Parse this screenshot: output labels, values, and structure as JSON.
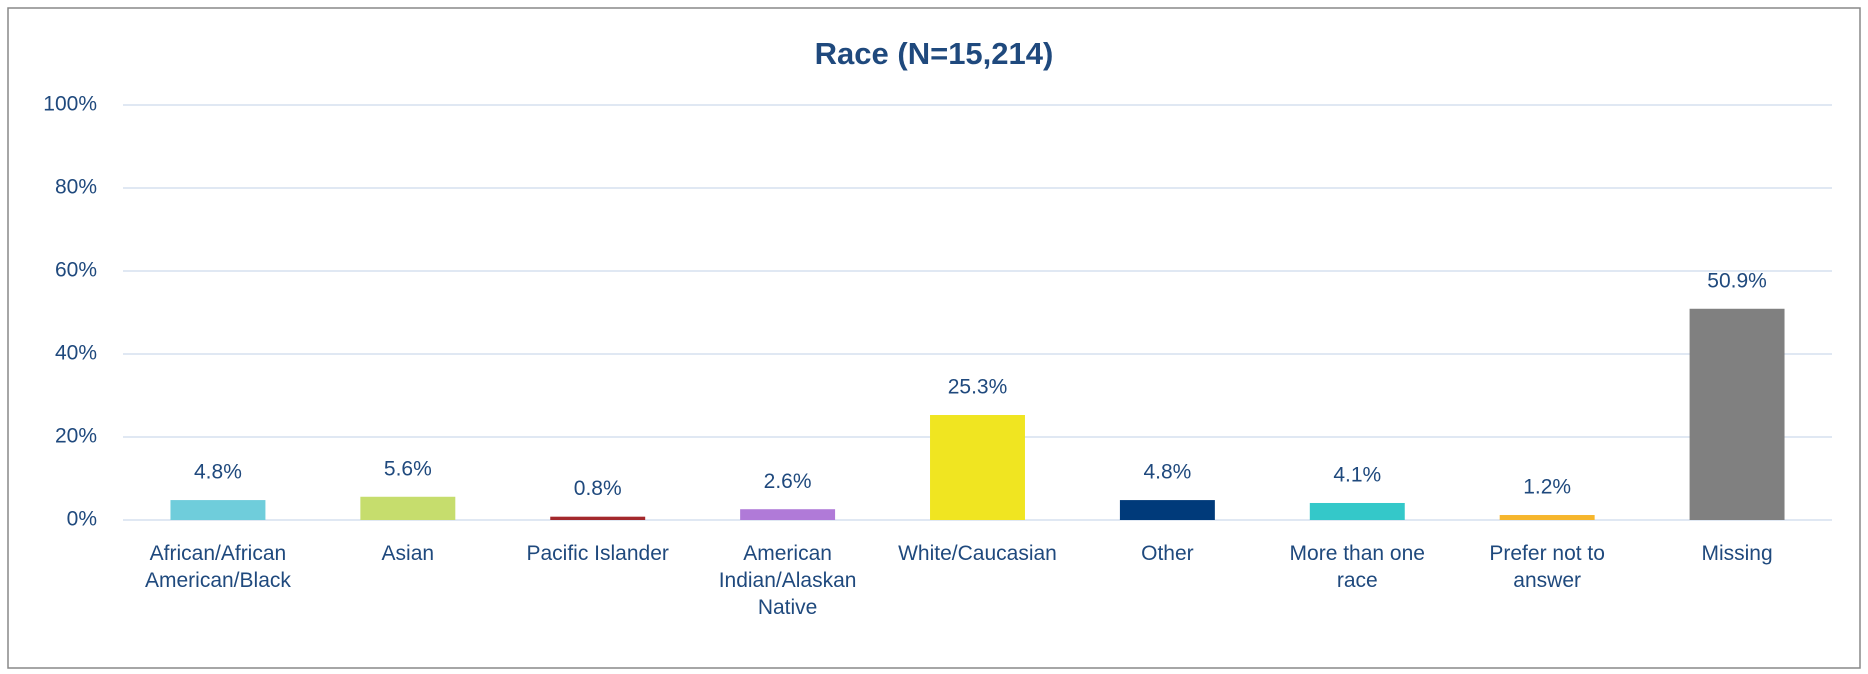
{
  "chart_data": {
    "type": "bar",
    "title": "Race (N=15,214)",
    "categories": [
      "African/African\nAmerican/Black",
      "Asian",
      "Pacific Islander",
      "American\nIndian/Alaskan\nNative",
      "White/Caucasian",
      "Other",
      "More than one\nrace",
      "Prefer not to\nanswer",
      "Missing"
    ],
    "values": [
      4.8,
      5.6,
      0.8,
      2.6,
      25.3,
      4.8,
      4.1,
      1.2,
      50.9
    ],
    "value_labels": [
      "4.8%",
      "5.6%",
      "0.8%",
      "2.6%",
      "25.3%",
      "4.8%",
      "4.1%",
      "1.2%",
      "50.9%"
    ],
    "colors": [
      "#6fcddb",
      "#c6dd6d",
      "#a3282c",
      "#b07ad8",
      "#f0e521",
      "#003a7a",
      "#34c8c9",
      "#f6b62c",
      "#808080"
    ],
    "ylim": [
      0,
      100
    ],
    "yticks": [
      {
        "value": 0,
        "label": "0%"
      },
      {
        "value": 20,
        "label": "20%"
      },
      {
        "value": 40,
        "label": "40%"
      },
      {
        "value": 60,
        "label": "60%"
      },
      {
        "value": 80,
        "label": "80%"
      },
      {
        "value": 100,
        "label": "100%"
      }
    ],
    "grid": true
  }
}
